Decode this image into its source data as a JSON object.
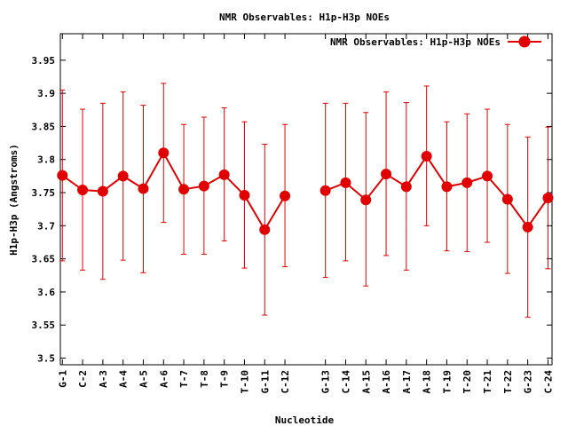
{
  "chart_data": {
    "type": "line",
    "title": "NMR Observables: H1p-H3p NOEs",
    "xlabel": "Nucleotide",
    "ylabel": "H1p-H3p (Angstroms)",
    "ylim": [
      3.49,
      3.99
    ],
    "yticks": [
      3.5,
      3.55,
      3.6,
      3.65,
      3.7,
      3.75,
      3.8,
      3.85,
      3.9,
      3.95
    ],
    "yticklabels": [
      "3.5",
      "3.55",
      "3.6",
      "3.65",
      "3.7",
      "3.75",
      "3.8",
      "3.85",
      "3.9",
      "3.95"
    ],
    "categories": [
      "G-1",
      "C-2",
      "A-3",
      "A-4",
      "A-5",
      "A-6",
      "T-7",
      "T-8",
      "T-9",
      "T-10",
      "G-11",
      "C-12",
      "G-13",
      "C-14",
      "A-15",
      "A-16",
      "A-17",
      "A-18",
      "T-19",
      "T-20",
      "T-21",
      "T-22",
      "G-23",
      "C-24"
    ],
    "x": [
      1,
      2,
      3,
      4,
      5,
      6,
      7,
      8,
      9,
      10,
      11,
      12,
      14,
      15,
      16,
      17,
      18,
      19,
      20,
      21,
      22,
      23,
      24,
      25
    ],
    "xlim": [
      0.9,
      25.2
    ],
    "legend_position": "top-right",
    "color": "#e00000",
    "series": [
      {
        "name": "NMR Observables: H1p-H3p NOEs",
        "values": [
          3.776,
          3.754,
          3.752,
          3.775,
          3.756,
          3.81,
          3.755,
          3.76,
          3.777,
          3.746,
          3.694,
          3.745,
          3.753,
          3.765,
          3.739,
          3.778,
          3.759,
          3.805,
          3.759,
          3.765,
          3.775,
          3.74,
          3.698,
          3.742
        ],
        "upper": [
          3.905,
          3.876,
          3.885,
          3.902,
          3.882,
          3.915,
          3.853,
          3.864,
          3.878,
          3.857,
          3.823,
          3.853,
          3.885,
          3.885,
          3.871,
          3.902,
          3.886,
          3.911,
          3.857,
          3.869,
          3.876,
          3.853,
          3.834,
          3.849
        ],
        "lower": [
          3.647,
          3.633,
          3.619,
          3.648,
          3.629,
          3.705,
          3.657,
          3.657,
          3.677,
          3.636,
          3.565,
          3.638,
          3.622,
          3.647,
          3.609,
          3.655,
          3.633,
          3.7,
          3.662,
          3.661,
          3.675,
          3.628,
          3.562,
          3.635
        ]
      }
    ]
  }
}
